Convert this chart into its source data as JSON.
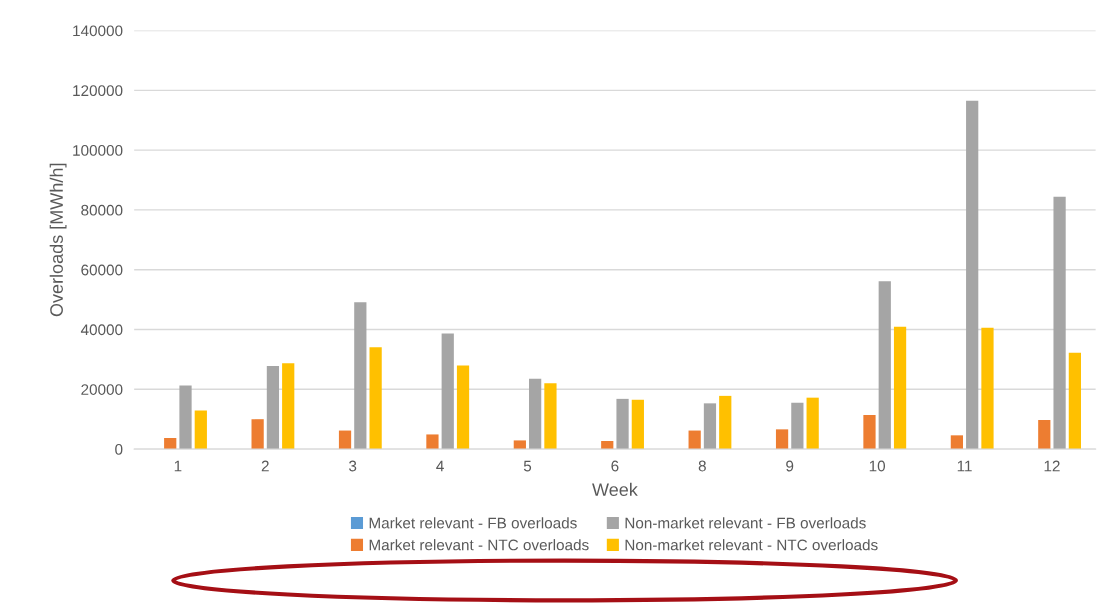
{
  "chart_data": {
    "type": "bar",
    "xlabel": "Week",
    "ylabel": "Overloads [MWh/h]",
    "categories": [
      "1",
      "2",
      "3",
      "4",
      "5",
      "6",
      "8",
      "9",
      "10",
      "11",
      "12"
    ],
    "series": [
      {
        "name": "Market relevant - FB overloads",
        "color": "#5b9bd5",
        "values": [
          0,
          0,
          0,
          0,
          0,
          0,
          0,
          0,
          0,
          0,
          0
        ]
      },
      {
        "name": "Market relevant - NTC overloads",
        "color": "#ed7d31",
        "values": [
          3700,
          10000,
          6200,
          4900,
          2900,
          2700,
          6200,
          6600,
          11400,
          4600,
          9700
        ]
      },
      {
        "name": "Non-market relevant - FB overloads",
        "color": "#a5a5a5",
        "values": [
          21300,
          27800,
          49100,
          38700,
          23500,
          16800,
          15300,
          15500,
          56100,
          116500,
          84400
        ]
      },
      {
        "name": "Non-market relevant - NTC overloads",
        "color": "#ffc000",
        "values": [
          12900,
          28700,
          34100,
          28000,
          22000,
          16500,
          17800,
          17200,
          40900,
          40600,
          32200
        ]
      }
    ],
    "ylim": [
      0,
      140000
    ],
    "yticks": [
      0,
      20000,
      40000,
      60000,
      80000,
      100000,
      120000,
      140000
    ],
    "grid": "y",
    "legend": "bottom"
  }
}
